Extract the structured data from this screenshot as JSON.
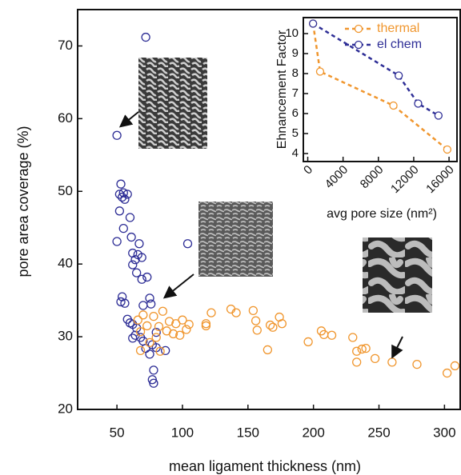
{
  "chart_data": [
    {
      "type": "scatter",
      "x_label": "mean ligament thickness (nm)",
      "y_label": "pore area coverage (%)",
      "xlim": [
        20,
        312
      ],
      "ylim": [
        20,
        75
      ],
      "xticks": [
        50,
        100,
        150,
        200,
        250,
        300
      ],
      "yticks": [
        20,
        30,
        40,
        50,
        60,
        70
      ],
      "series": [
        {
          "name": "el chem",
          "color": "#2e2e96",
          "x": [
            72,
            50,
            53,
            52,
            55,
            54,
            58,
            56,
            52,
            60,
            55,
            61,
            50,
            67,
            104,
            62,
            66,
            69,
            64,
            62,
            65,
            73,
            69,
            54,
            53,
            56,
            75,
            70,
            76,
            58,
            62,
            65,
            80,
            68,
            62,
            70,
            77,
            80,
            87,
            72,
            75,
            78,
            77,
            78,
            60,
            64
          ],
          "values": [
            71.2,
            57.7,
            51,
            49.6,
            49.8,
            49.2,
            49.6,
            48.9,
            47.3,
            46.4,
            44.9,
            43.7,
            43.1,
            42.8,
            42.8,
            41.5,
            41.3,
            40.9,
            40.6,
            39.9,
            38.8,
            38.2,
            37.9,
            35.5,
            34.8,
            34.6,
            35.3,
            34.3,
            34.5,
            32.4,
            31.7,
            31.2,
            30.6,
            29.9,
            29.8,
            29.4,
            28.9,
            28.5,
            28.1,
            28.4,
            27.6,
            25.4,
            24.1,
            23.6,
            31.9,
            30.2
          ]
        },
        {
          "name": "thermal",
          "color": "#f0962e",
          "x": [
            85,
            70,
            78,
            66,
            90,
            95,
            100,
            105,
            82,
            73,
            68,
            93,
            88,
            98,
            80,
            75,
            68,
            83,
            103,
            118,
            122,
            137,
            141,
            154,
            156,
            157,
            167,
            169,
            174,
            176,
            165,
            196,
            206,
            208,
            214,
            230,
            233,
            237,
            240,
            247,
            233,
            260,
            279,
            302,
            308,
            118
          ],
          "values": [
            33.5,
            33.0,
            32.8,
            32.3,
            32.1,
            31.8,
            32.3,
            31.7,
            31.4,
            31.5,
            30.7,
            30.4,
            30.8,
            30.2,
            29.9,
            29.2,
            28.1,
            28.0,
            31.0,
            31.8,
            33.3,
            33.8,
            33.3,
            33.6,
            32.2,
            30.9,
            31.6,
            31.3,
            32.7,
            31.8,
            28.2,
            29.3,
            30.8,
            30.3,
            30.2,
            29.9,
            28.0,
            28.3,
            28.4,
            27.0,
            26.5,
            26.5,
            26.2,
            25.0,
            26.0,
            31.5
          ]
        }
      ]
    },
    {
      "type": "line",
      "x_label": "avg pore size (nm²)",
      "y_label": "Ehnancement Factor",
      "xlim": [
        -500,
        16900
      ],
      "ylim": [
        3.6,
        10.8
      ],
      "xticks": [
        0,
        4000,
        8000,
        12000,
        16000
      ],
      "yticks": [
        4,
        5,
        6,
        7,
        8,
        9,
        10
      ],
      "legend": "upper right",
      "series": [
        {
          "name": "thermal",
          "color": "#f0962e",
          "x": [
            600,
            1400,
            9700,
            15800
          ],
          "values": [
            10.5,
            8.1,
            6.4,
            4.2
          ]
        },
        {
          "name": "el chem",
          "color": "#2e2e96",
          "x": [
            600,
            10300,
            12500,
            14800
          ],
          "values": [
            10.5,
            7.9,
            6.5,
            5.9
          ]
        }
      ]
    }
  ]
}
